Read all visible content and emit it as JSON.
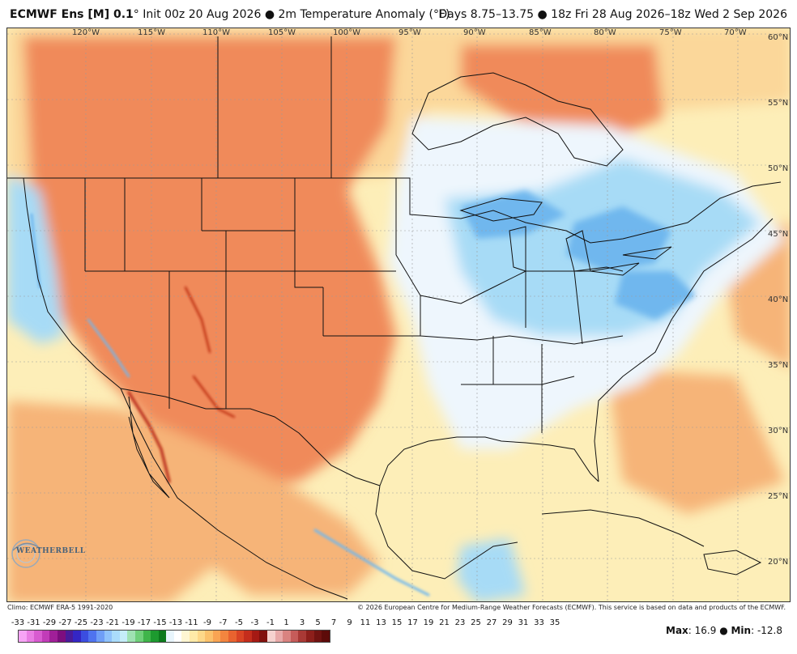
{
  "header": {
    "model": "ECMWF Ens [M] 0.1",
    "degree_sign": "°",
    "init": " Init 00z 20 Aug 2026 ",
    "variable": " 2m Temperature Anomaly (°F)",
    "period": "Days 8.75–13.75 ● 18z Fri 28 Aug 2026–18z Wed 2 Sep 2026"
  },
  "map": {
    "longitude_labels": [
      "120°W",
      "115°W",
      "110°W",
      "105°W",
      "100°W",
      "95°W",
      "90°W",
      "85°W",
      "80°W",
      "75°W",
      "70°W"
    ],
    "latitude_labels": [
      "60°N",
      "55°N",
      "50°N",
      "45°N",
      "40°N",
      "35°N",
      "30°N",
      "25°N",
      "20°N"
    ],
    "colors": {
      "warm_strong": "#f08a5a",
      "warm_mid": "#f6b478",
      "warm_light": "#fbd79a",
      "warm_pale": "#fdeeb8",
      "cool_light": "#eef6fd",
      "cool_mid": "#a7dbf6",
      "cool_strong": "#6fb7ee",
      "dark_red": "#b21a0a",
      "border": "#111111"
    }
  },
  "logo": {
    "text": "WEATHERBELL",
    "icon": "swirl-logo-icon"
  },
  "footer": {
    "climo": "Climo: ECMWF ERA-5 1991-2020",
    "copyright": "© 2026 European Centre for Medium-Range Weather Forecasts (ECMWF). This service is based on data and products of the ECMWF."
  },
  "colorbar": {
    "ticks": [
      "-33",
      "-31",
      "-29",
      "-27",
      "-25",
      "-23",
      "-21",
      "-19",
      "-17",
      "-15",
      "-13",
      "-11",
      "-9",
      "-7",
      "-5",
      "-3",
      "-1",
      "1",
      "3",
      "5",
      "7",
      "9",
      "11",
      "13",
      "15",
      "17",
      "19",
      "21",
      "23",
      "25",
      "27",
      "29",
      "31",
      "33",
      "35"
    ],
    "colors": [
      "#f7a4f5",
      "#e97de3",
      "#d85bd0",
      "#c13cb8",
      "#a01f98",
      "#7d0e7e",
      "#4a1b9a",
      "#3426c4",
      "#3b4de0",
      "#4f73ef",
      "#6f9ef7",
      "#8fc2fb",
      "#aadcfb",
      "#c5edf8",
      "#9fe2b2",
      "#6fd07a",
      "#3fb54a",
      "#1d9a2f",
      "#0c7a1d",
      "#e8f5fc",
      "#ffffff",
      "#fff6d2",
      "#feeaa8",
      "#fdd889",
      "#fbc16b",
      "#f9a453",
      "#f3853f",
      "#e9632f",
      "#d94424",
      "#c42d1c",
      "#a51a14",
      "#82100d",
      "#f6d2cf",
      "#e8a9a8",
      "#d98380",
      "#c65c5a",
      "#a93935",
      "#8d1f1b",
      "#711311",
      "#5d0b09"
    ]
  },
  "stats": {
    "max_label": "Max",
    "max_value": ": 16.9",
    "separator": " ● ",
    "min_label": "Min",
    "min_value": ": -12.8"
  }
}
